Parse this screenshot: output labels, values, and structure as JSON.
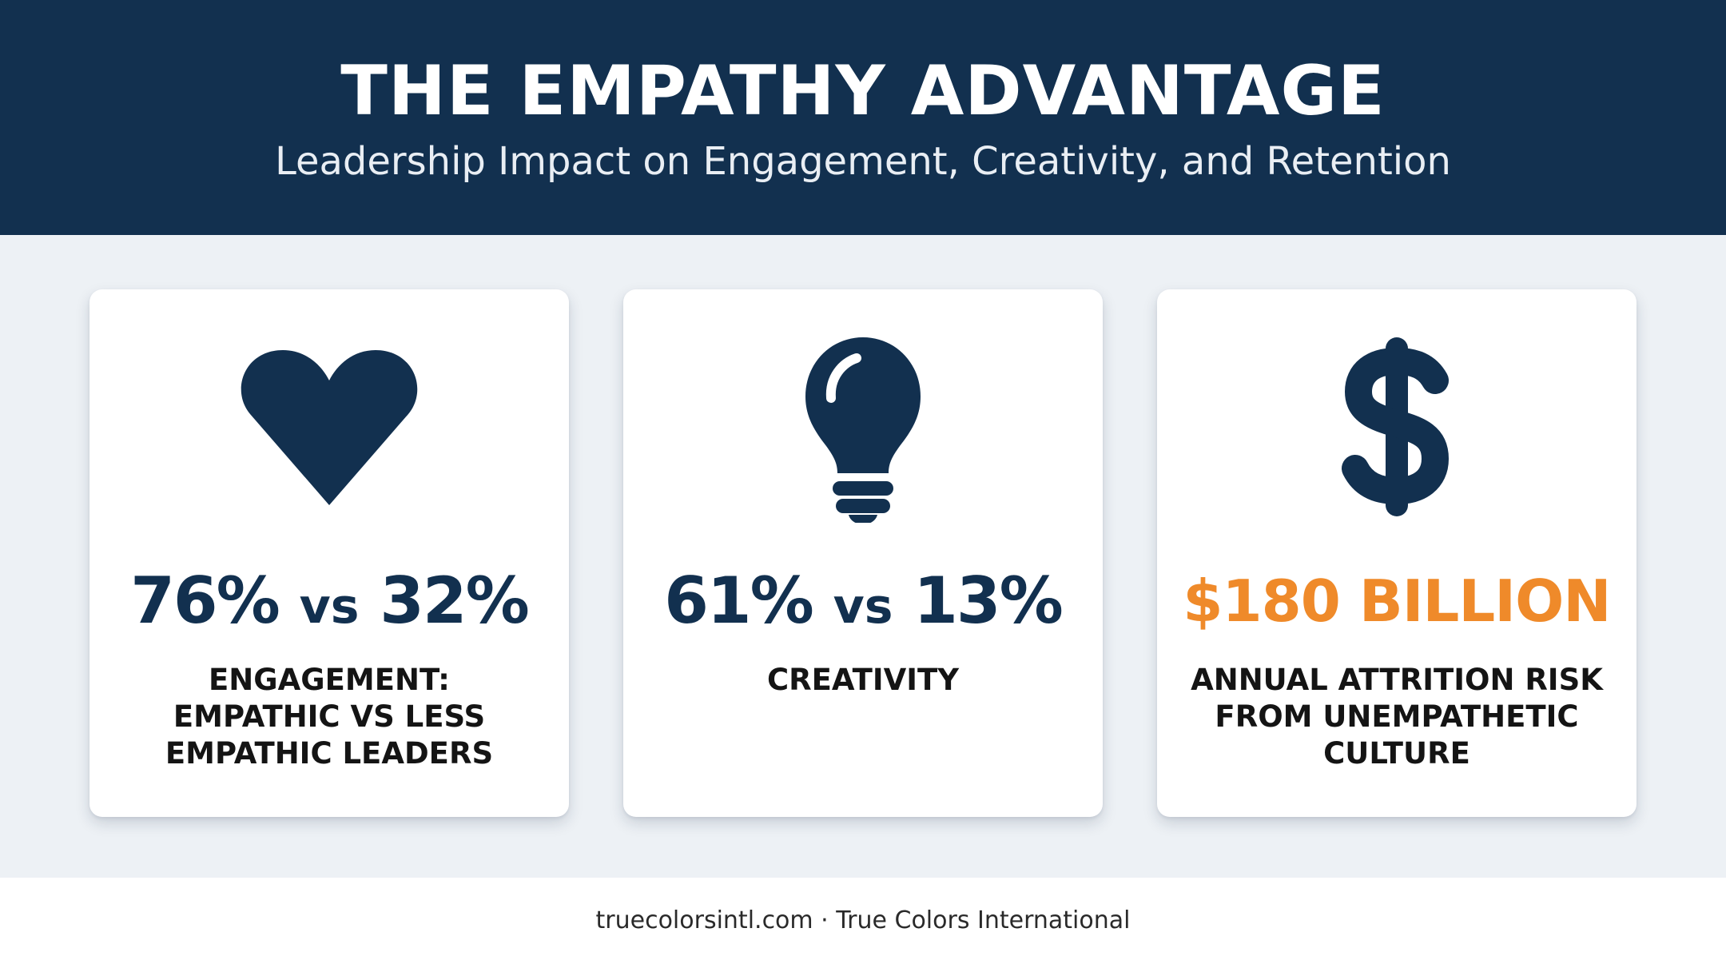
{
  "header": {
    "title": "THE EMPATHY ADVANTAGE",
    "subtitle": "Leadership Impact on Engagement, Creativity, and Retention"
  },
  "cards": [
    {
      "icon": "heart-icon",
      "stat_a": "76%",
      "stat_vs": "vs",
      "stat_b": "32%",
      "caption": "ENGAGEMENT: EMPATHIC VS LESS EMPATHIC LEADERS"
    },
    {
      "icon": "lightbulb-icon",
      "stat_a": "61%",
      "stat_vs": "vs",
      "stat_b": "13%",
      "caption": "CREATIVITY"
    },
    {
      "icon": "dollar-icon",
      "stat": "$180 BILLION",
      "caption": "ANNUAL ATTRITION RISK FROM UNEMPATHETIC CULTURE"
    }
  ],
  "footer": {
    "text": "truecolorsintl.com · True Colors International"
  },
  "colors": {
    "navy": "#12304f",
    "accent_orange": "#ef8a2a",
    "band_background": "#edf1f5",
    "card_background": "#ffffff"
  }
}
